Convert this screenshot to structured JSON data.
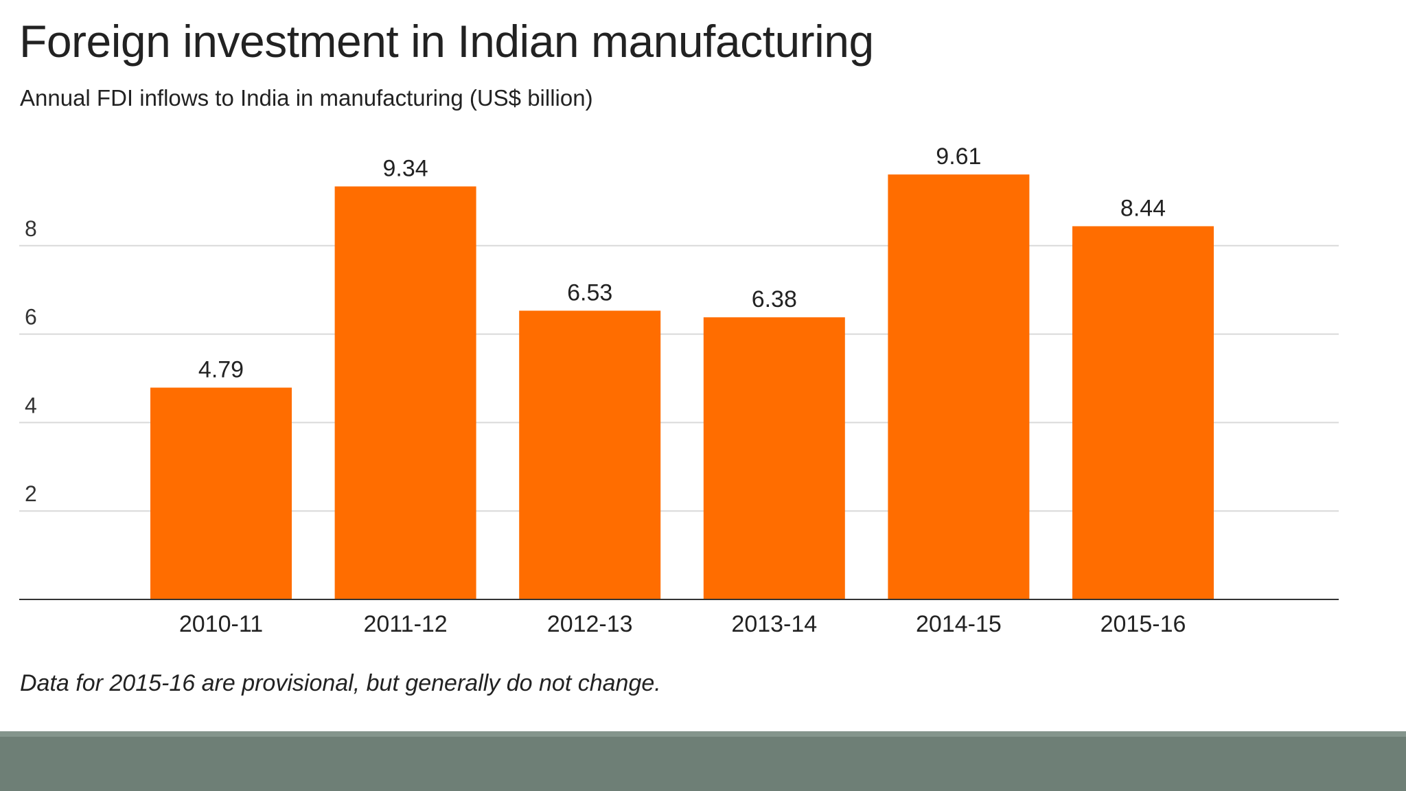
{
  "chart_data": {
    "type": "bar",
    "title": "Foreign investment in Indian manufacturing",
    "subtitle": "Annual FDI inflows to India in manufacturing (US$ billion)",
    "categories": [
      "2010-11",
      "2011-12",
      "2012-13",
      "2013-14",
      "2014-15",
      "2015-16"
    ],
    "values": [
      4.79,
      9.34,
      6.53,
      6.38,
      9.61,
      8.44
    ],
    "data_labels": [
      "4.79",
      "9.34",
      "6.53",
      "6.38",
      "9.61",
      "8.44"
    ],
    "y_ticks": [
      2,
      4,
      6,
      8
    ],
    "ylim": [
      0,
      10
    ],
    "grid": true,
    "legend": "none",
    "bar_color": "#ff6d00",
    "note": "Data for 2015-16 are provisional, but generally do not change."
  }
}
